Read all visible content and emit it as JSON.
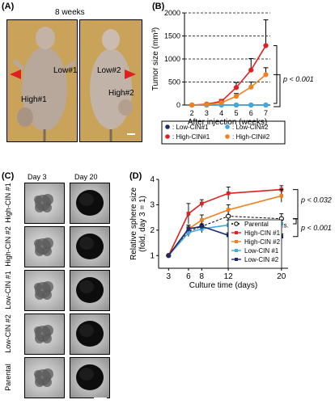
{
  "panels": {
    "a": "(A)",
    "b": "(B)",
    "c": "(C)",
    "d": "(D)"
  },
  "panel_a": {
    "header": "8 weeks",
    "labels": {
      "high1": "High#1",
      "low1": "Low#1",
      "low2": "Low#2",
      "high2": "High#2"
    }
  },
  "panel_c": {
    "columns": [
      "Day 3",
      "Day 20"
    ],
    "rows": [
      "High-CIN #1",
      "High-CIN #2",
      "Low-CIN #1",
      "Low-CIN #2",
      "Parental"
    ]
  },
  "colors": {
    "low1": "#1f2a6b",
    "low2": "#3fa9e0",
    "high1": "#e02020",
    "high2": "#f08020",
    "parental": "#ffffff"
  },
  "chart_data": [
    {
      "type": "line",
      "panel": "B",
      "ylabel": "Tumor size (mm³)",
      "xlabel": "After injection (weeks)",
      "x": [
        2,
        3,
        4,
        5,
        6,
        7
      ],
      "ylim": [
        0,
        2000
      ],
      "yticks": [
        0,
        500,
        1000,
        1500,
        2000
      ],
      "grid": "dashed horizontal",
      "series": [
        {
          "name": ": Low-CIN#1",
          "key": "low1",
          "values": [
            0,
            0,
            0,
            0,
            0,
            0
          ]
        },
        {
          "name": ": Low-CIN#2",
          "key": "low2",
          "values": [
            0,
            0,
            0,
            0,
            0,
            0
          ]
        },
        {
          "name": ": High-CIN#1",
          "key": "high1",
          "values": [
            0,
            20,
            80,
            380,
            760,
            1290
          ],
          "err": [
            0,
            10,
            40,
            110,
            250,
            560
          ]
        },
        {
          "name": ": High-CIN#2",
          "key": "high2",
          "values": [
            0,
            10,
            50,
            190,
            390,
            660
          ],
          "err": [
            0,
            5,
            20,
            60,
            110,
            150
          ]
        }
      ],
      "annotation": "p < 0.001",
      "legend": "below"
    },
    {
      "type": "line",
      "panel": "D",
      "ylabel": "Relative sphere size\n(fold, day 3 = 1)",
      "xlabel": "Culture time (days)",
      "x": [
        3,
        6,
        8,
        12,
        20
      ],
      "ylim": [
        0.5,
        4
      ],
      "yticks": [
        1,
        2,
        3,
        4
      ],
      "series": [
        {
          "name": "Parental",
          "key": "parental",
          "values": [
            1,
            1.95,
            2.15,
            2.55,
            2.45
          ],
          "err": [
            0,
            0.15,
            0.2,
            0.3,
            0.2
          ]
        },
        {
          "name": "High-CIN #1",
          "key": "high1",
          "values": [
            1,
            2.65,
            3.05,
            3.45,
            3.6
          ],
          "err": [
            0,
            0.4,
            0.15,
            0.25,
            0.15
          ]
        },
        {
          "name": "High-CIN #2",
          "key": "high2",
          "values": [
            1,
            2.05,
            2.4,
            2.8,
            3.35
          ],
          "err": [
            0,
            0.15,
            0.2,
            0.2,
            0.25
          ]
        },
        {
          "name": "Low-CIN #1",
          "key": "low2",
          "values": [
            1,
            1.9,
            2.05,
            2.2,
            2.25
          ],
          "err": [
            0,
            0.15,
            0.15,
            0.2,
            0.15
          ]
        },
        {
          "name": "Low-CIN #2",
          "key": "low1",
          "values": [
            1,
            2.05,
            2.15,
            1.8,
            1.75
          ],
          "err": [
            0,
            0.1,
            0.1,
            0.1,
            0.1
          ]
        }
      ],
      "annotations": [
        "p < 0.032",
        "n.s.",
        "p < 0.001"
      ],
      "legend": "bottom-right"
    }
  ]
}
